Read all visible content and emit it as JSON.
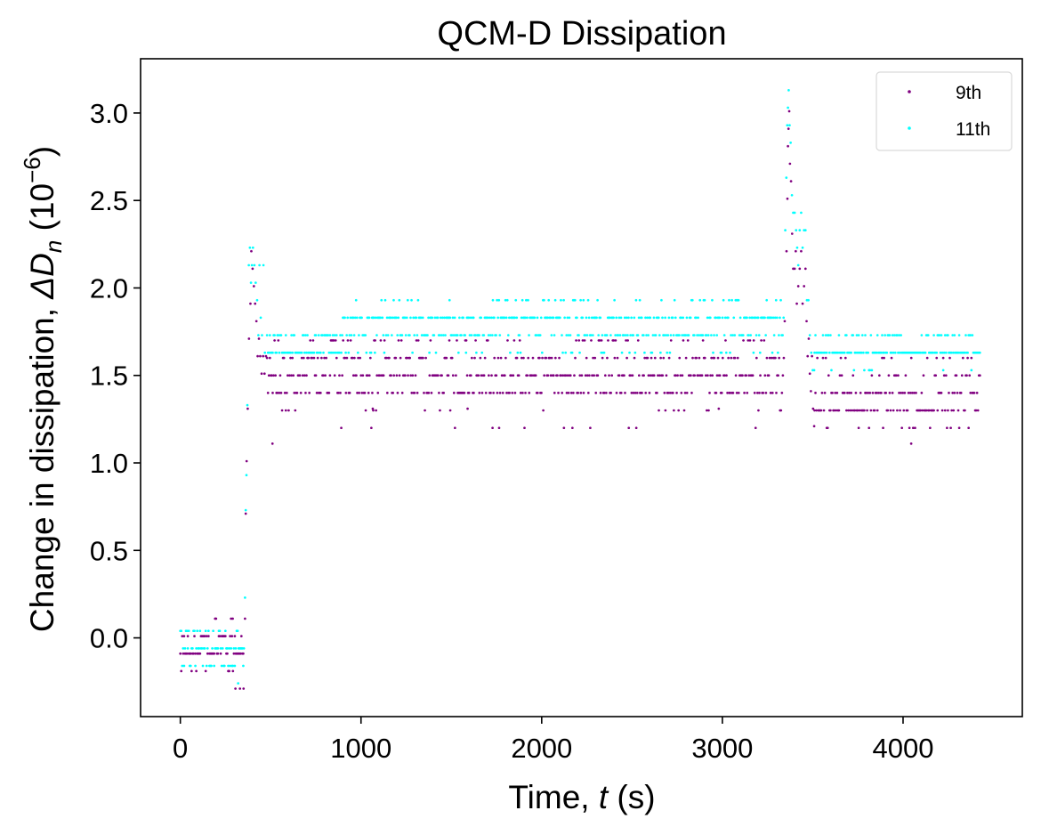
{
  "chart_data": {
    "type": "scatter",
    "title": "QCM-D Dissipation",
    "xlabel": {
      "prefix": "Time, ",
      "var": "t",
      "suffix": " (s)"
    },
    "ylabel": {
      "prefix": "Change in dissipation, ",
      "var": "ΔD",
      "sub": "n",
      "unit_open": " (10",
      "exp": "−6",
      "unit_close": ")"
    },
    "xlim": [
      -220,
      4660
    ],
    "ylim": [
      -0.45,
      3.31
    ],
    "xticks": [
      0,
      1000,
      2000,
      3000,
      4000
    ],
    "xtick_labels": [
      "0",
      "1000",
      "2000",
      "3000",
      "4000"
    ],
    "yticks": [
      0.0,
      0.5,
      1.0,
      1.5,
      2.0,
      2.5,
      3.0
    ],
    "ytick_labels": [
      "0.0",
      "0.5",
      "1.0",
      "1.5",
      "2.0",
      "2.5",
      "3.0"
    ],
    "grid": false,
    "legend_position": "top-right",
    "series": [
      {
        "name": "9th",
        "color": "#800080"
      },
      {
        "name": "11th",
        "color": "#00ffff"
      }
    ],
    "segments": [
      {
        "series": "9th",
        "t_start": 0,
        "t_end": 350,
        "levels": [
          -0.09,
          0.01,
          -0.19,
          0.11
        ],
        "weights": [
          0.55,
          0.3,
          0.08,
          0.07
        ]
      },
      {
        "series": "9th",
        "t_start": 480,
        "t_end": 3340,
        "levels": [
          1.4,
          1.5,
          1.6,
          1.7,
          1.3,
          1.2
        ],
        "weights": [
          0.28,
          0.34,
          0.22,
          0.1,
          0.04,
          0.02
        ]
      },
      {
        "series": "9th",
        "t_start": 3510,
        "t_end": 4430,
        "levels": [
          1.3,
          1.4,
          1.5,
          1.2,
          1.6
        ],
        "weights": [
          0.38,
          0.3,
          0.14,
          0.1,
          0.08
        ]
      },
      {
        "series": "11th",
        "t_start": 0,
        "t_end": 350,
        "levels": [
          -0.06,
          0.04,
          -0.16
        ],
        "weights": [
          0.45,
          0.25,
          0.3
        ]
      },
      {
        "series": "11th",
        "t_start": 480,
        "t_end": 900,
        "levels": [
          1.63,
          1.73
        ],
        "weights": [
          0.55,
          0.45
        ]
      },
      {
        "series": "11th",
        "t_start": 900,
        "t_end": 3340,
        "levels": [
          1.83,
          1.73,
          1.93,
          1.63
        ],
        "weights": [
          0.5,
          0.3,
          0.12,
          0.08
        ]
      },
      {
        "series": "11th",
        "t_start": 3510,
        "t_end": 4430,
        "levels": [
          1.63,
          1.73,
          1.53
        ],
        "weights": [
          0.62,
          0.3,
          0.08
        ]
      }
    ],
    "transitions": [
      {
        "series": "9th",
        "points": [
          [
            350,
            -0.29
          ],
          [
            358,
            0.11
          ],
          [
            362,
            0.71
          ],
          [
            367,
            1.01
          ],
          [
            373,
            1.31
          ],
          [
            380,
            1.71
          ],
          [
            388,
            1.91
          ],
          [
            393,
            2.21
          ],
          [
            400,
            2.11
          ],
          [
            407,
            2.01
          ],
          [
            414,
            1.91
          ],
          [
            421,
            1.81
          ],
          [
            428,
            1.61
          ],
          [
            435,
            1.71
          ],
          [
            442,
            1.61
          ],
          [
            450,
            1.51
          ],
          [
            458,
            1.61
          ],
          [
            466,
            1.51
          ],
          [
            474,
            1.61
          ],
          [
            510,
            1.11
          ],
          [
            330,
            -0.29
          ],
          [
            305,
            -0.29
          ],
          [
            290,
            0.11
          ]
        ]
      },
      {
        "series": "11th",
        "points": [
          [
            352,
            -0.06
          ],
          [
            358,
            0.23
          ],
          [
            362,
            0.73
          ],
          [
            366,
            0.93
          ],
          [
            371,
            1.33
          ],
          [
            379,
            2.13
          ],
          [
            385,
            2.23
          ],
          [
            391,
            2.03
          ],
          [
            396,
            2.13
          ],
          [
            402,
            2.23
          ],
          [
            410,
            2.13
          ],
          [
            417,
            2.03
          ],
          [
            425,
            1.93
          ],
          [
            432,
            1.73
          ],
          [
            438,
            2.13
          ],
          [
            445,
            1.83
          ],
          [
            452,
            1.73
          ],
          [
            460,
            2.13
          ],
          [
            468,
            1.63
          ],
          [
            320,
            -0.26
          ]
        ]
      },
      {
        "series": "9th",
        "points": [
          [
            3345,
            1.81
          ],
          [
            3355,
            2.21
          ],
          [
            3360,
            2.51
          ],
          [
            3363,
            2.81
          ],
          [
            3366,
            2.91
          ],
          [
            3370,
            3.01
          ],
          [
            3374,
            2.71
          ],
          [
            3380,
            2.61
          ],
          [
            3386,
            2.31
          ],
          [
            3392,
            2.11
          ],
          [
            3400,
            2.11
          ],
          [
            3406,
            2.21
          ],
          [
            3412,
            1.91
          ],
          [
            3420,
            2.01
          ],
          [
            3428,
            2.11
          ],
          [
            3436,
            2.21
          ],
          [
            3444,
            1.91
          ],
          [
            3452,
            2.01
          ],
          [
            3460,
            2.11
          ],
          [
            3466,
            1.81
          ],
          [
            3472,
            1.61
          ],
          [
            3478,
            1.71
          ],
          [
            3484,
            1.51
          ],
          [
            3490,
            1.41
          ],
          [
            3496,
            1.61
          ],
          [
            3502,
            1.31
          ],
          [
            3508,
            1.21
          ],
          [
            2980,
            1.31
          ],
          [
            1590,
            1.31
          ],
          [
            1065,
            1.31
          ],
          [
            4045,
            1.11
          ]
        ]
      },
      {
        "series": "11th",
        "points": [
          [
            3348,
            2.33
          ],
          [
            3354,
            2.63
          ],
          [
            3359,
            2.93
          ],
          [
            3363,
            3.03
          ],
          [
            3367,
            3.13
          ],
          [
            3372,
            2.93
          ],
          [
            3378,
            2.83
          ],
          [
            3385,
            2.53
          ],
          [
            3392,
            2.43
          ],
          [
            3400,
            2.43
          ],
          [
            3408,
            2.33
          ],
          [
            3414,
            2.23
          ],
          [
            3420,
            2.13
          ],
          [
            3428,
            2.33
          ],
          [
            3436,
            2.43
          ],
          [
            3444,
            2.23
          ],
          [
            3452,
            2.33
          ],
          [
            3460,
            2.33
          ],
          [
            3468,
            1.93
          ],
          [
            3476,
            1.93
          ],
          [
            3484,
            1.73
          ],
          [
            3492,
            1.63
          ],
          [
            3500,
            1.53
          ],
          [
            3508,
            1.53
          ],
          [
            1490,
            1.93
          ],
          [
            1730,
            1.93
          ]
        ]
      }
    ]
  }
}
